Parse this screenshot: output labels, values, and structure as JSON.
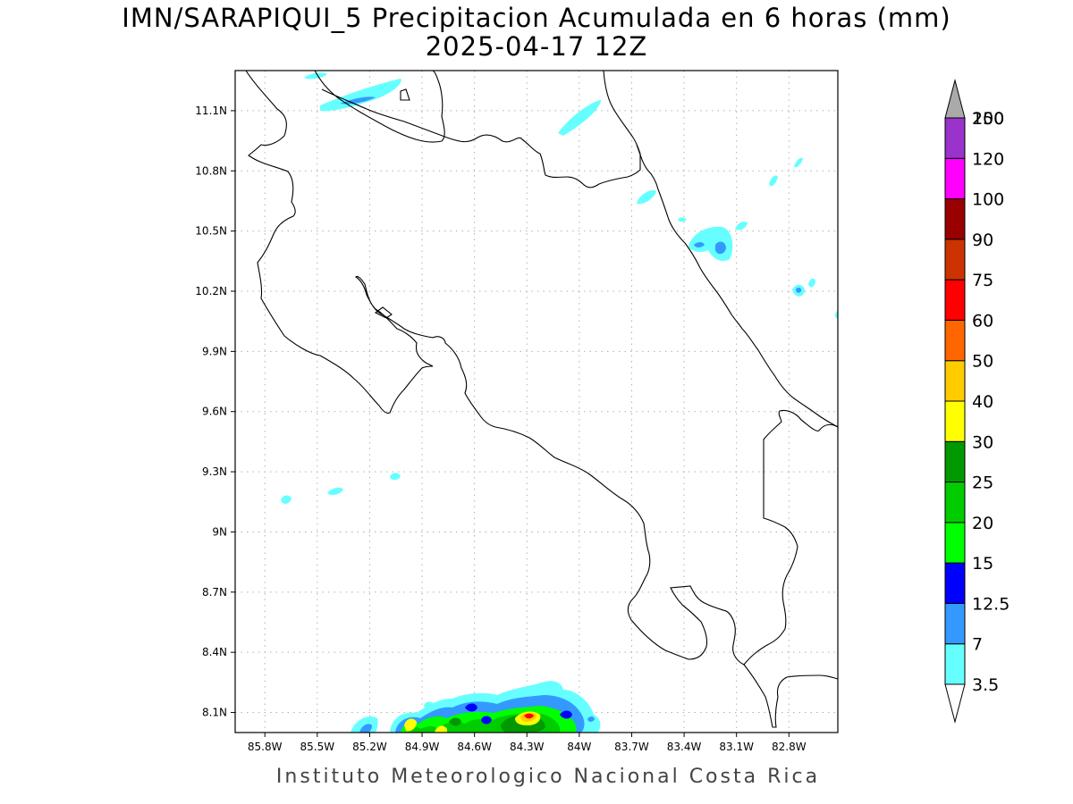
{
  "header": {
    "title": "IMN/SARAPIQUI_5 Precipitacion Acumulada en 6 horas (mm)",
    "subtitle": "2025-04-17 12Z"
  },
  "footer": {
    "credit": "Instituto Meteorologico Nacional Costa Rica"
  },
  "map": {
    "lon_range": [
      -85.97,
      -82.52
    ],
    "lat_range": [
      8.0,
      11.3
    ],
    "lon_ticks": [
      {
        "value": -85.8,
        "label": "85.8W"
      },
      {
        "value": -85.5,
        "label": "85.5W"
      },
      {
        "value": -85.2,
        "label": "85.2W"
      },
      {
        "value": -84.9,
        "label": "84.9W"
      },
      {
        "value": -84.6,
        "label": "84.6W"
      },
      {
        "value": -84.3,
        "label": "84.3W"
      },
      {
        "value": -84.0,
        "label": "84W"
      },
      {
        "value": -83.7,
        "label": "83.7W"
      },
      {
        "value": -83.4,
        "label": "83.4W"
      },
      {
        "value": -83.1,
        "label": "83.1W"
      },
      {
        "value": -82.8,
        "label": "82.8W"
      }
    ],
    "lat_ticks": [
      {
        "value": 11.1,
        "label": "11.1N"
      },
      {
        "value": 10.8,
        "label": "10.8N"
      },
      {
        "value": 10.5,
        "label": "10.5N"
      },
      {
        "value": 10.2,
        "label": "10.2N"
      },
      {
        "value": 9.9,
        "label": "9.9N"
      },
      {
        "value": 9.6,
        "label": "9.6N"
      },
      {
        "value": 9.3,
        "label": "9.3N"
      },
      {
        "value": 9.0,
        "label": "9N"
      },
      {
        "value": 8.7,
        "label": "8.7N"
      },
      {
        "value": 8.4,
        "label": "8.4N"
      },
      {
        "value": 8.1,
        "label": "8.1N"
      }
    ],
    "grid": true,
    "colorbar": {
      "levels": [
        {
          "label": "3.5",
          "color": "#66ffff"
        },
        {
          "label": "7",
          "color": "#3399ff"
        },
        {
          "label": "12.5",
          "color": "#0000ff"
        },
        {
          "label": "15",
          "color": "#00ff00"
        },
        {
          "label": "20",
          "color": "#00cc00"
        },
        {
          "label": "25",
          "color": "#009900"
        },
        {
          "label": "30",
          "color": "#ffff00"
        },
        {
          "label": "40",
          "color": "#ffcc00"
        },
        {
          "label": "50",
          "color": "#ff6600"
        },
        {
          "label": "60",
          "color": "#ff0000"
        },
        {
          "label": "75",
          "color": "#cc3300"
        },
        {
          "label": "90",
          "color": "#990000"
        },
        {
          "label": "100",
          "color": "#ff00ff"
        },
        {
          "label": "120",
          "color": "#9933cc"
        },
        {
          "label": "150",
          "color": "#f5f5f5"
        },
        {
          "label": "200",
          "color": "#aaaaaa"
        }
      ]
    }
  }
}
